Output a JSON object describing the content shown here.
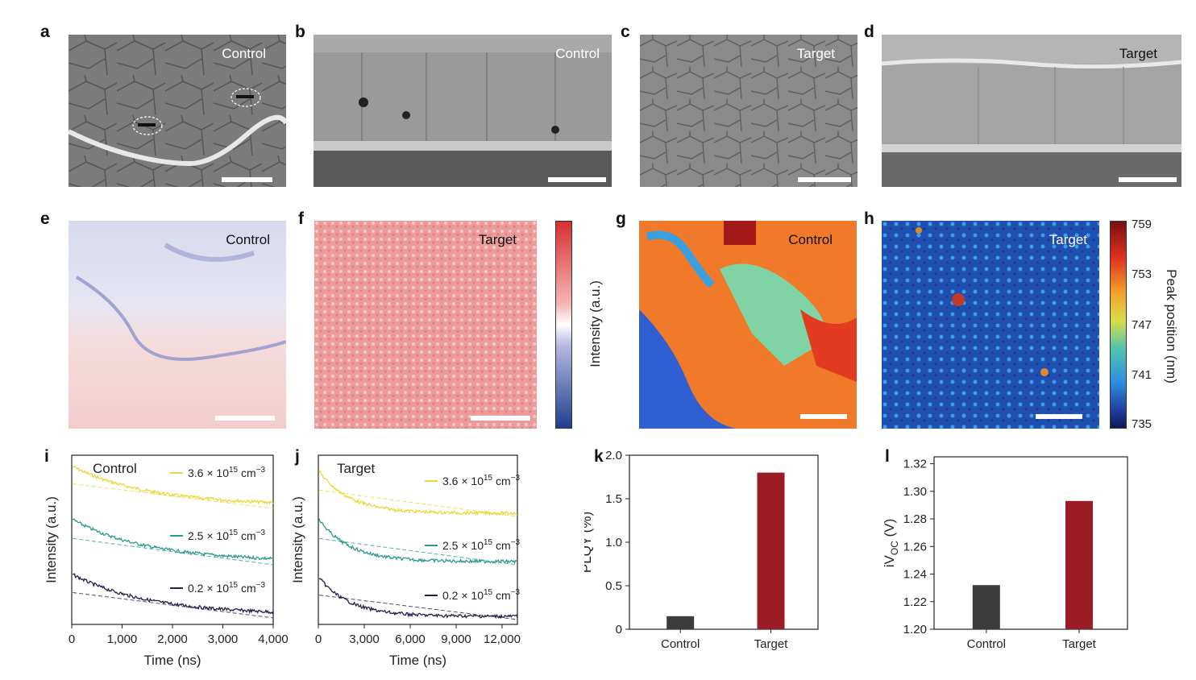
{
  "panel_letters": {
    "a": "a",
    "b": "b",
    "c": "c",
    "d": "d",
    "e": "e",
    "f": "f",
    "g": "g",
    "h": "h",
    "i": "i",
    "j": "j",
    "k": "k",
    "l": "l"
  },
  "sem": {
    "a": {
      "label": "Control"
    },
    "b": {
      "label": "Control"
    },
    "c": {
      "label": "Target"
    },
    "d": {
      "label": "Target"
    }
  },
  "pl_maps": {
    "e": {
      "label": "Control"
    },
    "f": {
      "label": "Target"
    },
    "intensity_colorbar": {
      "label": "Intensity (a.u.)",
      "colors": [
        "#1f3f8f",
        "#ffffff",
        "#d93030"
      ]
    },
    "g": {
      "label": "Control"
    },
    "h": {
      "label": "Target"
    },
    "peak_colorbar": {
      "label": "Peak position (nm)",
      "ticks": [
        "759",
        "753",
        "747",
        "741",
        "735"
      ]
    }
  },
  "colors": {
    "control_bar": "#3c3c3c",
    "target_bar": "#9b1c24",
    "high": "#e8d83a",
    "mid": "#2a9a8c",
    "low": "#2a1c4a"
  },
  "chart_data": [
    {
      "id": "i",
      "type": "line",
      "title": "Control",
      "xlabel": "Time (ns)",
      "ylabel": "Intensity (a.u.)",
      "xlim": [
        0,
        4000
      ],
      "xticks": [
        "0",
        "1,000",
        "2,000",
        "3,000",
        "4,000"
      ],
      "series": [
        {
          "name": "3.6 × 10¹⁵ cm⁻³",
          "base": "3.6 × 10",
          "exp": "15",
          "unit": " cm",
          "uexp": "−3",
          "color": "#e8d83a"
        },
        {
          "name": "2.5 × 10¹⁵ cm⁻³",
          "base": "2.5 × 10",
          "exp": "15",
          "unit": " cm",
          "uexp": "−3",
          "color": "#2a9a8c"
        },
        {
          "name": "0.2 × 10¹⁵ cm⁻³",
          "base": "0.2 × 10",
          "exp": "15",
          "unit": " cm",
          "uexp": "−3",
          "color": "#2a1c4a"
        }
      ]
    },
    {
      "id": "j",
      "type": "line",
      "title": "Target",
      "xlabel": "Time (ns)",
      "ylabel": "Intensity (a.u.)",
      "xlim": [
        0,
        13000
      ],
      "xticks": [
        "0",
        "3,000",
        "6,000",
        "9,000",
        "12,000"
      ],
      "series": [
        {
          "name": "3.6 × 10¹⁵ cm⁻³",
          "base": "3.6 × 10",
          "exp": "15",
          "unit": " cm",
          "uexp": "−3",
          "color": "#e8d83a"
        },
        {
          "name": "2.5 × 10¹⁵ cm⁻³",
          "base": "2.5 × 10",
          "exp": "15",
          "unit": " cm",
          "uexp": "−3",
          "color": "#2a9a8c"
        },
        {
          "name": "0.2 × 10¹⁵ cm⁻³",
          "base": "0.2 × 10",
          "exp": "15",
          "unit": " cm",
          "uexp": "−3",
          "color": "#2a1c4a"
        }
      ]
    },
    {
      "id": "k",
      "type": "bar",
      "categories": [
        "Control",
        "Target"
      ],
      "values": [
        0.15,
        1.8
      ],
      "ylabel": "PLQY (%)",
      "ylim": [
        0,
        2.0
      ],
      "yticks": [
        "0",
        "0.5",
        "1.0",
        "1.5",
        "2.0"
      ]
    },
    {
      "id": "l",
      "type": "bar",
      "categories": [
        "Control",
        "Target"
      ],
      "values": [
        1.232,
        1.293
      ],
      "ylabel": "iV",
      "ylabel_sub": "OC",
      "ylabel_unit": " (V)",
      "ylim": [
        1.2,
        1.325
      ],
      "yticks": [
        "1.20",
        "1.22",
        "1.24",
        "1.26",
        "1.28",
        "1.30",
        "1.32"
      ]
    }
  ]
}
